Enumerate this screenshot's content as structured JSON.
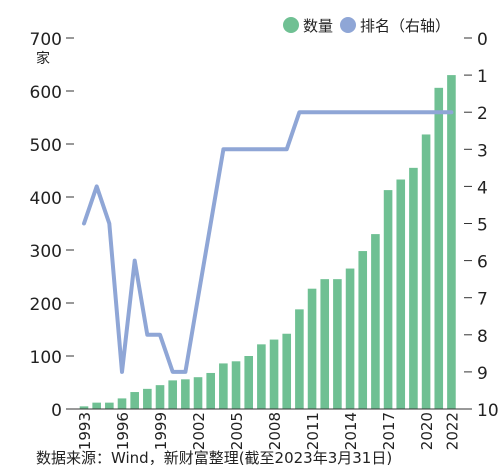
{
  "chart_data": {
    "type": "bar",
    "x": [
      1993,
      1994,
      1995,
      1996,
      1997,
      1998,
      1999,
      2000,
      2001,
      2002,
      2003,
      2004,
      2005,
      2006,
      2007,
      2008,
      2009,
      2010,
      2011,
      2012,
      2013,
      2014,
      2015,
      2016,
      2017,
      2018,
      2019,
      2020,
      2021,
      2022
    ],
    "series": [
      {
        "name": "数量",
        "type": "bar",
        "axis": "left",
        "values": [
          5,
          12,
          12,
          20,
          32,
          38,
          45,
          54,
          56,
          60,
          68,
          86,
          90,
          100,
          122,
          131,
          142,
          188,
          227,
          245,
          245,
          265,
          298,
          330,
          413,
          433,
          455,
          518,
          606,
          630
        ]
      },
      {
        "name": "排名（右轴）",
        "type": "line",
        "axis": "right",
        "values": [
          5,
          4,
          5,
          9,
          6,
          8,
          8,
          9,
          9,
          7,
          5,
          3,
          3,
          3,
          3,
          3,
          3,
          2,
          2,
          2,
          2,
          2,
          2,
          2,
          2,
          2,
          2,
          2,
          2,
          2
        ]
      }
    ],
    "x_tick_labels": [
      "1993",
      "1996",
      "1999",
      "2002",
      "2005",
      "2008",
      "2011",
      "2014",
      "2017",
      "2020",
      "2022"
    ],
    "y_left": {
      "ticks": [
        0,
        100,
        200,
        300,
        400,
        500,
        600,
        700
      ],
      "unit": "家",
      "lim": [
        0,
        700
      ]
    },
    "y_right": {
      "ticks": [
        0,
        1,
        2,
        3,
        4,
        5,
        6,
        7,
        8,
        9,
        10
      ],
      "lim": [
        0,
        10
      ],
      "inverted": true
    },
    "legend": {
      "position": "top-right",
      "items": [
        "数量",
        "排名（右轴）"
      ]
    },
    "colors": {
      "bar": "#6fc093",
      "line": "#8fa6d6"
    }
  },
  "source_text": "数据来源：Wind，新财富整理(截至2023年3月31日)"
}
